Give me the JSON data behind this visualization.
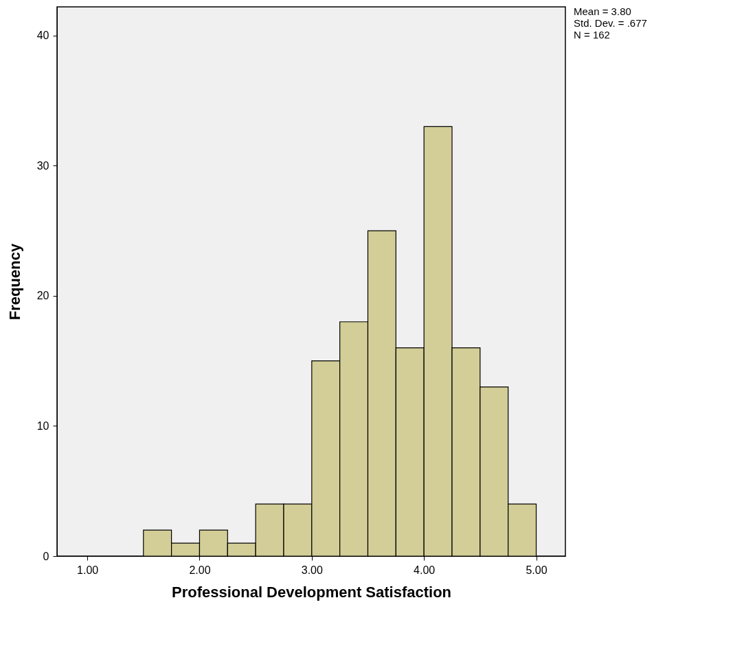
{
  "chart_data": {
    "type": "histogram",
    "xlabel": "Professional Development Satisfaction",
    "ylabel": "Frequency",
    "bins": [
      1.5,
      1.75,
      2.0,
      2.25,
      2.5,
      2.75,
      3.0,
      3.25,
      3.5,
      3.75,
      4.0,
      4.25,
      4.5,
      4.75,
      5.0
    ],
    "values": [
      2,
      1,
      2,
      1,
      4,
      4,
      15,
      18,
      25,
      16,
      33,
      16,
      13,
      4
    ],
    "color": "#d3ce97",
    "xlim": [
      0.73,
      5.26
    ],
    "xticks": [
      {
        "value": 1,
        "label": "1.00"
      },
      {
        "value": 2,
        "label": "2.00"
      },
      {
        "value": 3,
        "label": "3.00"
      },
      {
        "value": 4,
        "label": "4.00"
      },
      {
        "value": 5,
        "label": "5.00"
      }
    ],
    "ylim": [
      0,
      42.2
    ],
    "yticks": [
      0,
      10,
      20,
      30,
      40
    ],
    "grid": false,
    "annotations": [
      "Mean = 3.80",
      "Std. Dev. = .677",
      "N = 162"
    ]
  }
}
